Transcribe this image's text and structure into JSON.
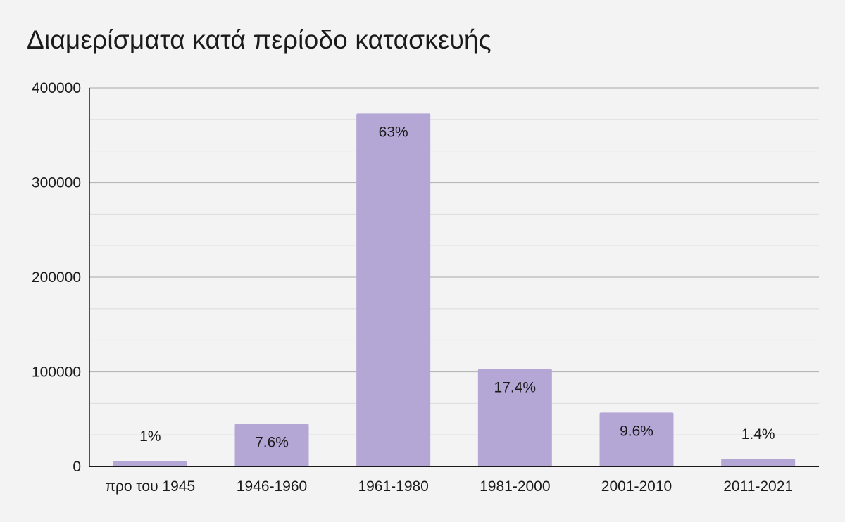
{
  "chart_data": {
    "type": "bar",
    "title": "Διαμερίσματα κατά περίοδο κατασκευής",
    "xlabel": "",
    "ylabel": "",
    "categories": [
      "προ του 1945",
      "1946-1960",
      "1961-1980",
      "1981-2000",
      "2001-2010",
      "2011-2021"
    ],
    "values": [
      5900,
      45000,
      373000,
      103000,
      57000,
      8200
    ],
    "data_labels": [
      "1%",
      "7.6%",
      "63%",
      "17.4%",
      "9.6%",
      "1.4%"
    ],
    "ylim": [
      0,
      400000
    ],
    "yticks": [
      0,
      100000,
      200000,
      300000,
      400000
    ],
    "ytick_labels": [
      "0",
      "100000",
      "200000",
      "300000",
      "400000"
    ],
    "grid": true,
    "legend": "none",
    "colors": {
      "bar": "#b4a7d6",
      "background": "#f3f3f3",
      "major_grid": "#b7b7b7",
      "minor_grid": "#dcdcdc",
      "axis": "#1a1a1a"
    }
  }
}
